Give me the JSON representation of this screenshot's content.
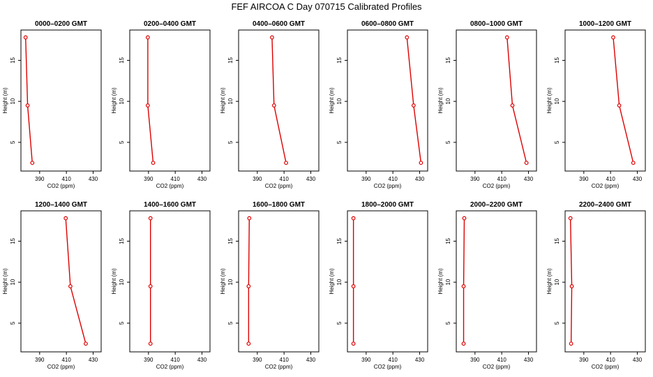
{
  "title": "FEF AIRCOA C  Day 070715  Calibrated Profiles",
  "colors": {
    "profile": "#dd0000",
    "axis": "#000000"
  },
  "chart_data": [
    {
      "type": "line",
      "title": "0000–0200 GMT",
      "xlabel": "CO2 (ppm)",
      "ylabel": "Height (m)",
      "xlim": [
        376,
        436
      ],
      "ylim": [
        1.5,
        18.7
      ],
      "xticks": [
        390,
        410,
        430
      ],
      "yticks": [
        5,
        10,
        15
      ],
      "x": [
        379.5,
        381.0,
        384.5
      ],
      "y": [
        17.8,
        9.5,
        2.5
      ]
    },
    {
      "type": "line",
      "title": "0200–0400 GMT",
      "xlabel": "CO2 (ppm)",
      "ylabel": "Height (m)",
      "xlim": [
        376,
        436
      ],
      "ylim": [
        1.5,
        18.7
      ],
      "xticks": [
        390,
        410,
        430
      ],
      "yticks": [
        5,
        10,
        15
      ],
      "x": [
        389.5,
        389.5,
        393.5
      ],
      "y": [
        17.8,
        9.5,
        2.5
      ]
    },
    {
      "type": "line",
      "title": "0400–0600 GMT",
      "xlabel": "CO2 (ppm)",
      "ylabel": "Height (m)",
      "xlim": [
        376,
        436
      ],
      "ylim": [
        1.5,
        18.7
      ],
      "xticks": [
        390,
        410,
        430
      ],
      "yticks": [
        5,
        10,
        15
      ],
      "x": [
        401.0,
        402.5,
        411.5
      ],
      "y": [
        17.8,
        9.5,
        2.5
      ]
    },
    {
      "type": "line",
      "title": "0600–0800 GMT",
      "xlabel": "CO2 (ppm)",
      "ylabel": "Height (m)",
      "xlim": [
        376,
        436
      ],
      "ylim": [
        1.5,
        18.7
      ],
      "xticks": [
        390,
        410,
        430
      ],
      "yticks": [
        5,
        10,
        15
      ],
      "x": [
        420.5,
        425.5,
        431.0
      ],
      "y": [
        17.8,
        9.5,
        2.5
      ]
    },
    {
      "type": "line",
      "title": "0800–1000 GMT",
      "xlabel": "CO2 (ppm)",
      "ylabel": "Height (m)",
      "xlim": [
        376,
        436
      ],
      "ylim": [
        1.5,
        18.7
      ],
      "xticks": [
        390,
        410,
        430
      ],
      "yticks": [
        5,
        10,
        15
      ],
      "x": [
        414.0,
        418.0,
        428.5
      ],
      "y": [
        17.8,
        9.5,
        2.5
      ]
    },
    {
      "type": "line",
      "title": "1000–1200 GMT",
      "xlabel": "CO2 (ppm)",
      "ylabel": "Height (m)",
      "xlim": [
        376,
        436
      ],
      "ylim": [
        1.5,
        18.7
      ],
      "xticks": [
        390,
        410,
        430
      ],
      "yticks": [
        5,
        10,
        15
      ],
      "x": [
        412.0,
        416.5,
        427.0
      ],
      "y": [
        17.8,
        9.5,
        2.5
      ]
    },
    {
      "type": "line",
      "title": "1200–1400 GMT",
      "xlabel": "CO2 (ppm)",
      "ylabel": "Height (m)",
      "xlim": [
        376,
        436
      ],
      "ylim": [
        1.5,
        18.7
      ],
      "xticks": [
        390,
        410,
        430
      ],
      "yticks": [
        5,
        10,
        15
      ],
      "x": [
        409.5,
        413.0,
        424.5
      ],
      "y": [
        17.8,
        9.5,
        2.5
      ]
    },
    {
      "type": "line",
      "title": "1400–1600 GMT",
      "xlabel": "CO2 (ppm)",
      "ylabel": "Height (m)",
      "xlim": [
        376,
        436
      ],
      "ylim": [
        1.5,
        18.7
      ],
      "xticks": [
        390,
        410,
        430
      ],
      "yticks": [
        5,
        10,
        15
      ],
      "x": [
        391.5,
        391.5,
        391.5
      ],
      "y": [
        17.8,
        9.5,
        2.5
      ]
    },
    {
      "type": "line",
      "title": "1600–1800 GMT",
      "xlabel": "CO2 (ppm)",
      "ylabel": "Height (m)",
      "xlim": [
        376,
        436
      ],
      "ylim": [
        1.5,
        18.7
      ],
      "xticks": [
        390,
        410,
        430
      ],
      "yticks": [
        5,
        10,
        15
      ],
      "x": [
        384.0,
        383.5,
        383.5
      ],
      "y": [
        17.8,
        9.5,
        2.5
      ]
    },
    {
      "type": "line",
      "title": "1800–2000 GMT",
      "xlabel": "CO2 (ppm)",
      "ylabel": "Height (m)",
      "xlim": [
        376,
        436
      ],
      "ylim": [
        1.5,
        18.7
      ],
      "xticks": [
        390,
        410,
        430
      ],
      "yticks": [
        5,
        10,
        15
      ],
      "x": [
        380.5,
        380.5,
        380.5
      ],
      "y": [
        17.8,
        9.5,
        2.5
      ]
    },
    {
      "type": "line",
      "title": "2000–2200 GMT",
      "xlabel": "CO2 (ppm)",
      "ylabel": "Height (m)",
      "xlim": [
        376,
        436
      ],
      "ylim": [
        1.5,
        18.7
      ],
      "xticks": [
        390,
        410,
        430
      ],
      "yticks": [
        5,
        10,
        15
      ],
      "x": [
        382.0,
        381.5,
        381.5
      ],
      "y": [
        17.8,
        9.5,
        2.5
      ]
    },
    {
      "type": "line",
      "title": "2200–2400 GMT",
      "xlabel": "CO2 (ppm)",
      "ylabel": "Height (m)",
      "xlim": [
        376,
        436
      ],
      "ylim": [
        1.5,
        18.7
      ],
      "xticks": [
        390,
        410,
        430
      ],
      "yticks": [
        5,
        10,
        15
      ],
      "x": [
        380.0,
        381.0,
        380.5
      ],
      "y": [
        17.8,
        9.5,
        2.5
      ]
    }
  ]
}
